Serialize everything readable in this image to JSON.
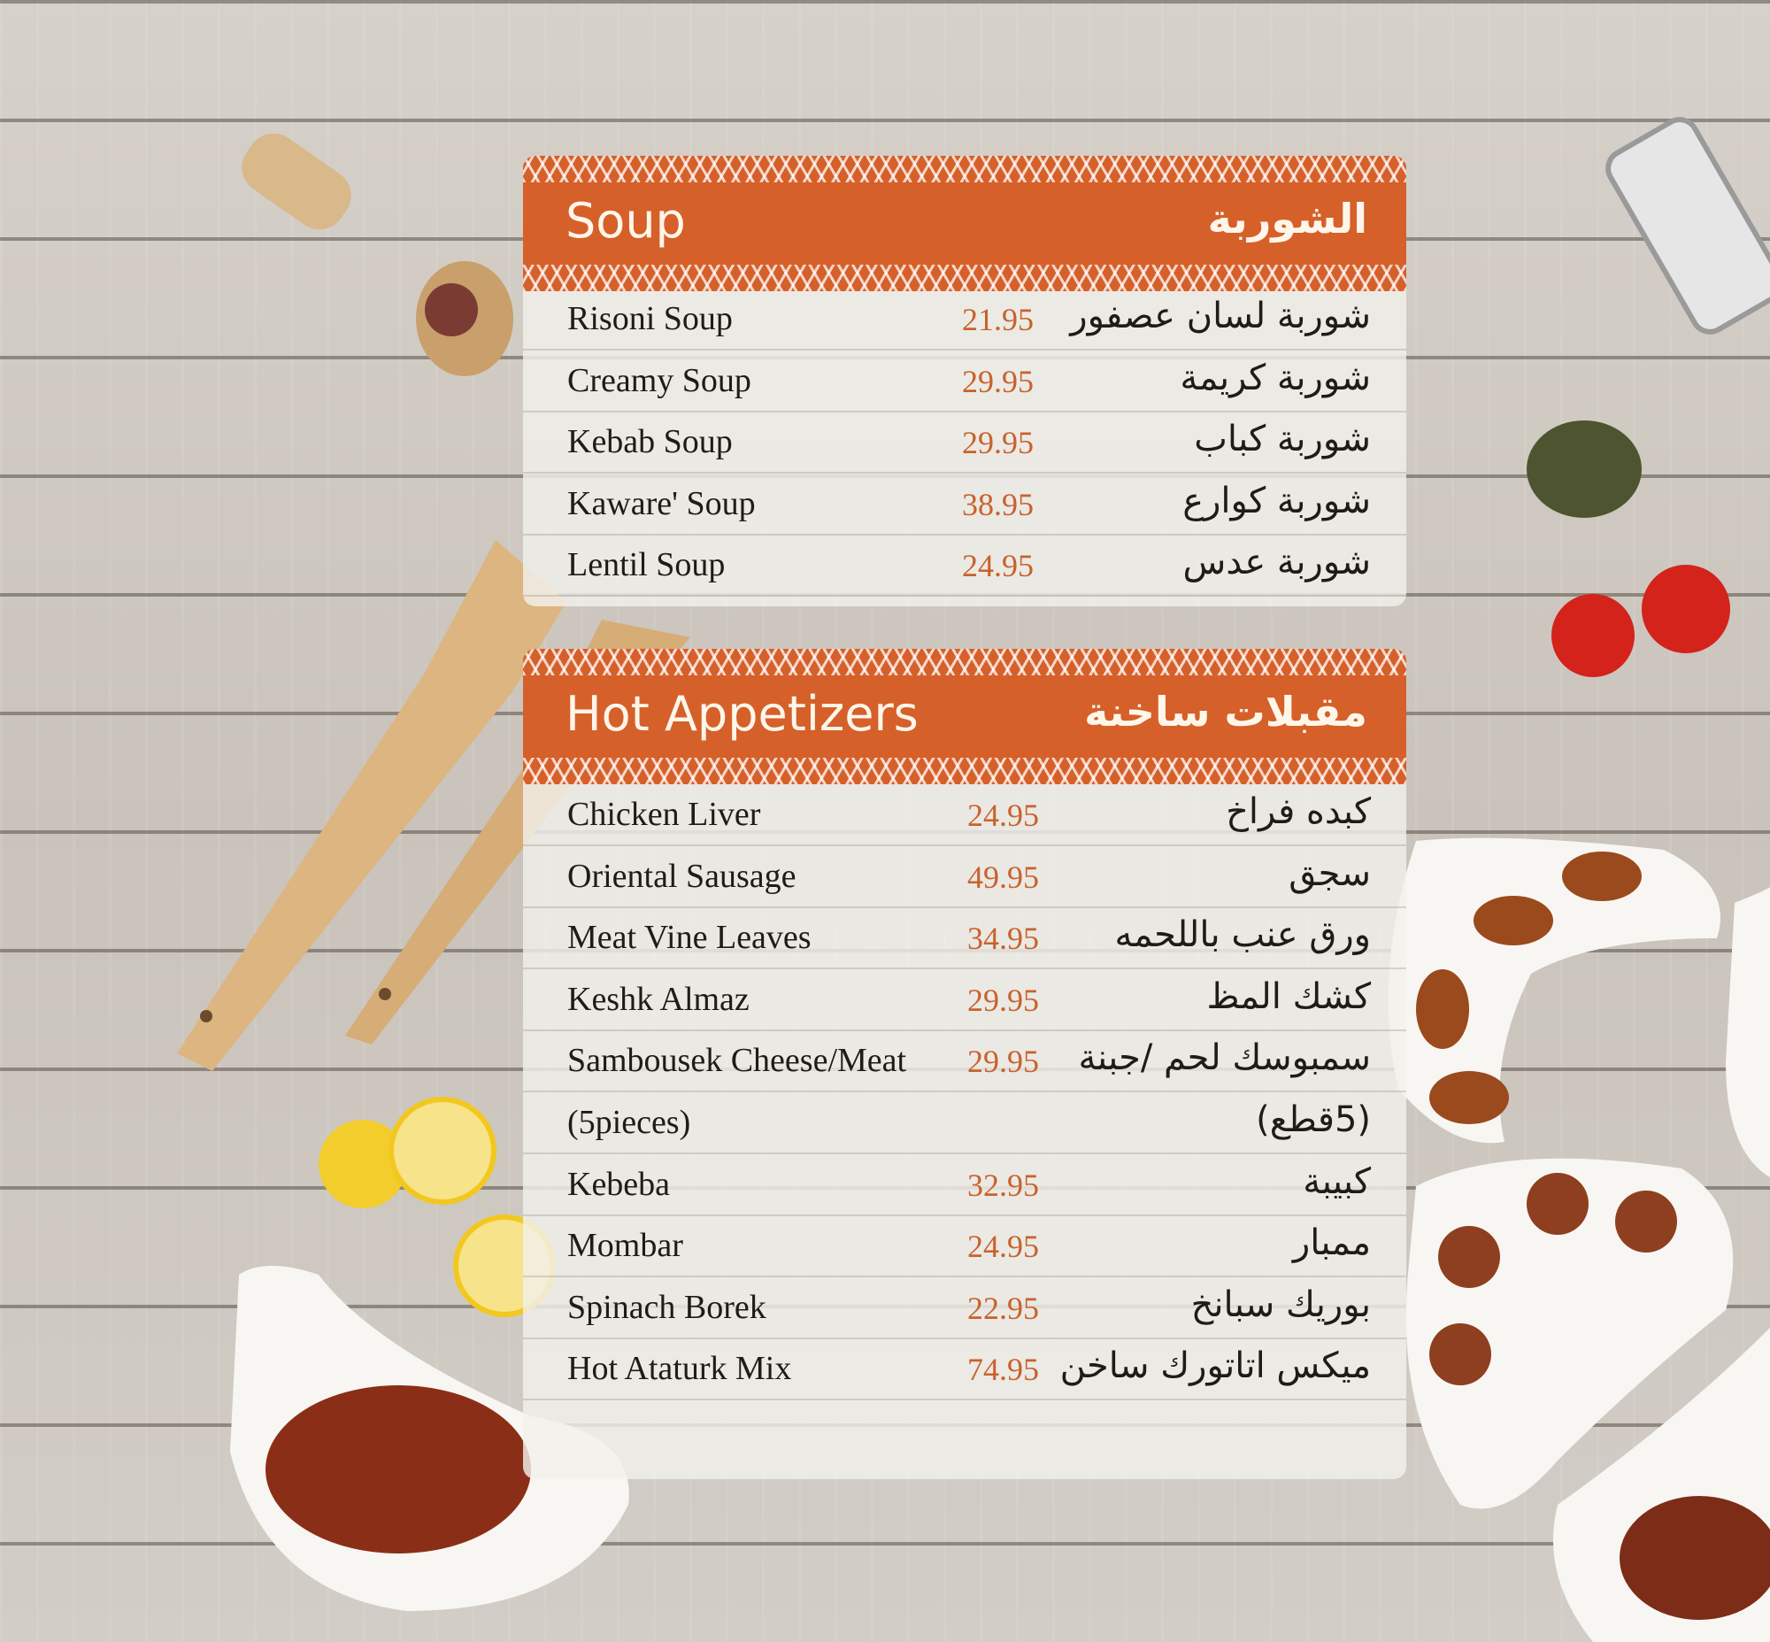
{
  "colors": {
    "accent": "#d6602a",
    "price": "#c8622d",
    "text": "#1e1b18"
  },
  "sections": [
    {
      "title": "Soup",
      "title_ar": "الشوربة",
      "items": [
        {
          "name": "Risoni Soup",
          "price": "21.95",
          "name_ar": "شوربة لسان عصفور"
        },
        {
          "name": "Creamy Soup",
          "price": "29.95",
          "name_ar": "شوربة كريمة"
        },
        {
          "name": "Kebab Soup",
          "price": "29.95",
          "name_ar": "شوربة كباب"
        },
        {
          "name": "Kaware' Soup",
          "price": "38.95",
          "name_ar": "شوربة كوارع"
        },
        {
          "name": "Lentil Soup",
          "price": "24.95",
          "name_ar": "شوربة عدس"
        }
      ]
    },
    {
      "title": "Hot Appetizers",
      "title_ar": "مقبلات ساخنة",
      "items": [
        {
          "name": "Chicken Liver",
          "price": "24.95",
          "name_ar": "كبده فراخ"
        },
        {
          "name": "Oriental Sausage",
          "price": "49.95",
          "name_ar": "سجق"
        },
        {
          "name": "Meat Vine Leaves",
          "price": "34.95",
          "name_ar": "ورق عنب باللحمه"
        },
        {
          "name": "Keshk Almaz",
          "price": "29.95",
          "name_ar": "كشك المظ"
        },
        {
          "name": "Sambousek Cheese/Meat",
          "price": "29.95",
          "name_ar": "سمبوسك لحم /جبنة"
        },
        {
          "name": "(5pieces)",
          "price": "",
          "name_ar": "(5قطع)"
        },
        {
          "name": "Kebeba",
          "price": "32.95",
          "name_ar": "كبيبة"
        },
        {
          "name": "Mombar",
          "price": "24.95",
          "name_ar": "ممبار"
        },
        {
          "name": "Spinach Borek",
          "price": "22.95",
          "name_ar": "بوريك سبانخ"
        },
        {
          "name": "Hot Ataturk Mix",
          "price": "74.95",
          "name_ar": "ميكس اتاتورك ساخن"
        }
      ]
    }
  ]
}
